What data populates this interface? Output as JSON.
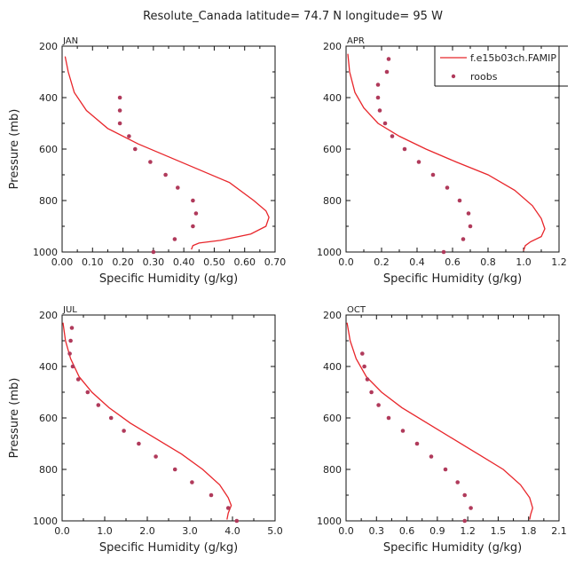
{
  "title": "Resolute_Canada  latitude= 74.7 N longitude= 95 W",
  "legend": {
    "model": "f.e15b03ch.FAMIP",
    "obs": "roobs",
    "model_color": "#e8262b",
    "obs_color": "#b03a5b"
  },
  "chart_data": [
    {
      "type": "line",
      "panel": "JAN",
      "xlabel": "Specific Humidity (g/kg)",
      "ylabel": "Pressure (mb)",
      "xlim": [
        0,
        0.7
      ],
      "xticks": [
        0.0,
        0.1,
        0.2,
        0.3,
        0.4,
        0.5,
        0.6,
        0.7
      ],
      "xtick_labels": [
        "0.00",
        "0.10",
        "0.20",
        "0.30",
        "0.40",
        "0.50",
        "0.60",
        "0.70"
      ],
      "ylim": [
        1000,
        200
      ],
      "yticks": [
        200,
        400,
        600,
        800,
        1000
      ],
      "series": [
        {
          "name": "f.e15b03ch.FAMIP",
          "style": "line",
          "x": [
            0.01,
            0.02,
            0.04,
            0.08,
            0.15,
            0.25,
            0.35,
            0.45,
            0.55,
            0.63,
            0.67,
            0.68,
            0.67,
            0.62,
            0.52,
            0.45,
            0.43,
            0.425
          ],
          "y": [
            240,
            300,
            380,
            450,
            520,
            580,
            630,
            680,
            730,
            800,
            840,
            865,
            900,
            930,
            955,
            965,
            975,
            990
          ]
        },
        {
          "name": "roobs",
          "style": "scatter",
          "x": [
            0.19,
            0.19,
            0.19,
            0.22,
            0.24,
            0.29,
            0.34,
            0.38,
            0.43,
            0.44,
            0.43,
            0.37,
            0.3
          ],
          "y": [
            400,
            450,
            500,
            550,
            600,
            650,
            700,
            750,
            800,
            850,
            900,
            950,
            1000
          ]
        }
      ]
    },
    {
      "type": "line",
      "panel": "APR",
      "xlabel": "Specific Humidity (g/kg)",
      "ylabel": "Pressure (mb)",
      "xlim": [
        0,
        1.2
      ],
      "xticks": [
        0,
        0.2,
        0.4,
        0.6,
        0.8,
        1.0,
        1.2
      ],
      "xtick_labels": [
        "0.0",
        "0.2",
        "0.4",
        "0.6",
        "0.8",
        "1.0",
        "1.2"
      ],
      "ylim": [
        1000,
        200
      ],
      "yticks": [
        200,
        400,
        600,
        800,
        1000
      ],
      "series": [
        {
          "name": "f.e15b03ch.FAMIP",
          "style": "line",
          "x": [
            0.01,
            0.02,
            0.05,
            0.1,
            0.18,
            0.3,
            0.45,
            0.62,
            0.8,
            0.95,
            1.05,
            1.1,
            1.12,
            1.1,
            1.04,
            1.01,
            1.0
          ],
          "y": [
            230,
            300,
            380,
            440,
            500,
            550,
            600,
            650,
            700,
            760,
            820,
            870,
            910,
            940,
            960,
            975,
            995
          ]
        },
        {
          "name": "roobs",
          "style": "scatter",
          "x": [
            0.24,
            0.23,
            0.18,
            0.18,
            0.19,
            0.22,
            0.26,
            0.33,
            0.41,
            0.49,
            0.57,
            0.64,
            0.69,
            0.7,
            0.66,
            0.55
          ],
          "y": [
            250,
            300,
            350,
            400,
            450,
            500,
            550,
            600,
            650,
            700,
            750,
            800,
            850,
            900,
            950,
            1000
          ]
        }
      ]
    },
    {
      "type": "line",
      "panel": "JUL",
      "xlabel": "Specific Humidity (g/kg)",
      "ylabel": "Pressure (mb)",
      "xlim": [
        0,
        5.0
      ],
      "xticks": [
        0,
        1,
        2,
        3,
        4,
        5
      ],
      "xtick_labels": [
        "0.0",
        "1.0",
        "2.0",
        "3.0",
        "4.0",
        "5.0"
      ],
      "ylim": [
        1000,
        200
      ],
      "yticks": [
        200,
        400,
        600,
        800,
        1000
      ],
      "series": [
        {
          "name": "f.e15b03ch.FAMIP",
          "style": "line",
          "x": [
            0.02,
            0.08,
            0.2,
            0.4,
            0.7,
            1.1,
            1.6,
            2.2,
            2.8,
            3.3,
            3.7,
            3.9,
            3.97,
            3.9,
            3.87
          ],
          "y": [
            230,
            300,
            370,
            440,
            500,
            560,
            620,
            680,
            740,
            800,
            860,
            910,
            940,
            970,
            995
          ]
        },
        {
          "name": "roobs",
          "style": "scatter",
          "x": [
            0.23,
            0.2,
            0.18,
            0.25,
            0.38,
            0.6,
            0.85,
            1.15,
            1.45,
            1.8,
            2.2,
            2.65,
            3.05,
            3.5,
            3.9,
            4.1
          ],
          "y": [
            250,
            300,
            350,
            400,
            450,
            500,
            550,
            600,
            650,
            700,
            750,
            800,
            850,
            900,
            950,
            1000
          ]
        }
      ]
    },
    {
      "type": "line",
      "panel": "OCT",
      "xlabel": "Specific Humidity (g/kg)",
      "ylabel": "Pressure (mb)",
      "xlim": [
        0,
        2.1
      ],
      "xticks": [
        0,
        0.3,
        0.6,
        0.9,
        1.2,
        1.5,
        1.8,
        2.1
      ],
      "xtick_labels": [
        "0.0",
        "0.3",
        "0.6",
        "0.9",
        "1.2",
        "1.5",
        "1.8",
        "2.1"
      ],
      "ylim": [
        1000,
        200
      ],
      "yticks": [
        200,
        400,
        600,
        800,
        1000
      ],
      "series": [
        {
          "name": "f.e15b03ch.FAMIP",
          "style": "line",
          "x": [
            0.01,
            0.04,
            0.1,
            0.2,
            0.35,
            0.55,
            0.8,
            1.05,
            1.3,
            1.55,
            1.72,
            1.81,
            1.84,
            1.82,
            1.81
          ],
          "y": [
            230,
            300,
            370,
            440,
            500,
            560,
            620,
            680,
            740,
            800,
            860,
            910,
            950,
            975,
            995
          ]
        },
        {
          "name": "roobs",
          "style": "scatter",
          "x": [
            0.16,
            0.18,
            0.21,
            0.25,
            0.32,
            0.42,
            0.56,
            0.7,
            0.84,
            0.98,
            1.1,
            1.17,
            1.23,
            1.17
          ],
          "y": [
            350,
            400,
            450,
            500,
            550,
            600,
            650,
            700,
            750,
            800,
            850,
            900,
            950,
            1000
          ]
        }
      ]
    }
  ]
}
